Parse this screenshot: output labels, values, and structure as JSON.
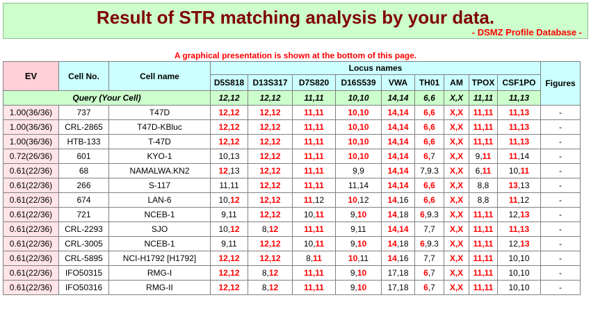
{
  "header": {
    "title": "Result of STR matching analysis by your data.",
    "subtitle": "- DSMZ Profile Database -"
  },
  "note": "A graphical presentation is shown at the bottom of this page.",
  "columns": {
    "ev": "EV",
    "cell_no": "Cell No.",
    "cell_name": "Cell name",
    "locus_names": "Locus names",
    "figures": "Figures",
    "loci": [
      "D5S818",
      "D13S317",
      "D7S820",
      "D16S539",
      "VWA",
      "TH01",
      "AM",
      "TPOX",
      "CSF1PO"
    ]
  },
  "query": {
    "label": "Query (Your Cell)",
    "values": [
      "12,12",
      "12,12",
      "11,11",
      "10,10",
      "14,14",
      "6,6",
      "X,X",
      "11,11",
      "11,13"
    ]
  },
  "rows": [
    {
      "ev": "1.00(36/36)",
      "cell_no": "737",
      "cell_name": "T47D",
      "figures": "-",
      "values": [
        [
          [
            "12,12",
            1
          ]
        ],
        [
          [
            "12,12",
            1
          ]
        ],
        [
          [
            "11,11",
            1
          ]
        ],
        [
          [
            "10,10",
            1
          ]
        ],
        [
          [
            "14,14",
            1
          ]
        ],
        [
          [
            "6,6",
            1
          ]
        ],
        [
          [
            "X,X",
            1
          ]
        ],
        [
          [
            "11,11",
            1
          ]
        ],
        [
          [
            "11,13",
            1
          ]
        ]
      ]
    },
    {
      "ev": "1.00(36/36)",
      "cell_no": "CRL-2865",
      "cell_name": "T47D-KBluc",
      "figures": "-",
      "values": [
        [
          [
            "12,12",
            1
          ]
        ],
        [
          [
            "12,12",
            1
          ]
        ],
        [
          [
            "11,11",
            1
          ]
        ],
        [
          [
            "10,10",
            1
          ]
        ],
        [
          [
            "14,14",
            1
          ]
        ],
        [
          [
            "6,6",
            1
          ]
        ],
        [
          [
            "X,X",
            1
          ]
        ],
        [
          [
            "11,11",
            1
          ]
        ],
        [
          [
            "11,13",
            1
          ]
        ]
      ]
    },
    {
      "ev": "1.00(36/36)",
      "cell_no": "HTB-133",
      "cell_name": "T-47D",
      "figures": "-",
      "values": [
        [
          [
            "12,12",
            1
          ]
        ],
        [
          [
            "12,12",
            1
          ]
        ],
        [
          [
            "11,11",
            1
          ]
        ],
        [
          [
            "10,10",
            1
          ]
        ],
        [
          [
            "14,14",
            1
          ]
        ],
        [
          [
            "6,6",
            1
          ]
        ],
        [
          [
            "X,X",
            1
          ]
        ],
        [
          [
            "11,11",
            1
          ]
        ],
        [
          [
            "11,13",
            1
          ]
        ]
      ]
    },
    {
      "ev": "0.72(26/36)",
      "cell_no": "601",
      "cell_name": "KYO-1",
      "figures": "-",
      "values": [
        [
          [
            "10,13",
            0
          ]
        ],
        [
          [
            "12,12",
            1
          ]
        ],
        [
          [
            "11,11",
            1
          ]
        ],
        [
          [
            "10,10",
            1
          ]
        ],
        [
          [
            "14,14",
            1
          ]
        ],
        [
          [
            "6,",
            1
          ],
          [
            "7",
            0
          ]
        ],
        [
          [
            "X,X",
            1
          ]
        ],
        [
          [
            "9,",
            0
          ],
          [
            "11",
            1
          ]
        ],
        [
          [
            "11",
            1
          ],
          [
            ",14",
            0
          ]
        ]
      ]
    },
    {
      "ev": "0.61(22/36)",
      "cell_no": "68",
      "cell_name": "NAMALWA.KN2",
      "figures": "-",
      "values": [
        [
          [
            "12",
            1
          ],
          [
            ",13",
            0
          ]
        ],
        [
          [
            "12,12",
            1
          ]
        ],
        [
          [
            "11,11",
            1
          ]
        ],
        [
          [
            "9,9",
            0
          ]
        ],
        [
          [
            "14,14",
            1
          ]
        ],
        [
          [
            "7,9.3",
            0
          ]
        ],
        [
          [
            "X,X",
            1
          ]
        ],
        [
          [
            "6,",
            0
          ],
          [
            "11",
            1
          ]
        ],
        [
          [
            "10,",
            0
          ],
          [
            "11",
            1
          ]
        ]
      ]
    },
    {
      "ev": "0.61(22/36)",
      "cell_no": "266",
      "cell_name": "S-117",
      "figures": "-",
      "values": [
        [
          [
            "11,11",
            0
          ]
        ],
        [
          [
            "12,12",
            1
          ]
        ],
        [
          [
            "11,11",
            1
          ]
        ],
        [
          [
            "11,14",
            0
          ]
        ],
        [
          [
            "14,14",
            1
          ]
        ],
        [
          [
            "6,6",
            1
          ]
        ],
        [
          [
            "X,X",
            1
          ]
        ],
        [
          [
            "8,8",
            0
          ]
        ],
        [
          [
            "13",
            1
          ],
          [
            ",13",
            0
          ]
        ]
      ]
    },
    {
      "ev": "0.61(22/36)",
      "cell_no": "674",
      "cell_name": "LAN-6",
      "figures": "-",
      "values": [
        [
          [
            "10,",
            0
          ],
          [
            "12",
            1
          ]
        ],
        [
          [
            "12,12",
            1
          ]
        ],
        [
          [
            "11",
            1
          ],
          [
            ",12",
            0
          ]
        ],
        [
          [
            "10",
            1
          ],
          [
            ",12",
            0
          ]
        ],
        [
          [
            "14",
            1
          ],
          [
            ",16",
            0
          ]
        ],
        [
          [
            "6,6",
            1
          ]
        ],
        [
          [
            "X,X",
            1
          ]
        ],
        [
          [
            "8,8",
            0
          ]
        ],
        [
          [
            "11",
            1
          ],
          [
            ",12",
            0
          ]
        ]
      ]
    },
    {
      "ev": "0.61(22/36)",
      "cell_no": "721",
      "cell_name": "NCEB-1",
      "figures": "-",
      "values": [
        [
          [
            "9,11",
            0
          ]
        ],
        [
          [
            "12,12",
            1
          ]
        ],
        [
          [
            "10,",
            0
          ],
          [
            "11",
            1
          ]
        ],
        [
          [
            "9,",
            0
          ],
          [
            "10",
            1
          ]
        ],
        [
          [
            "14",
            1
          ],
          [
            ",18",
            0
          ]
        ],
        [
          [
            "6",
            1
          ],
          [
            ",9.3",
            0
          ]
        ],
        [
          [
            "X,X",
            1
          ]
        ],
        [
          [
            "11,11",
            1
          ]
        ],
        [
          [
            "12,",
            0
          ],
          [
            "13",
            1
          ]
        ]
      ]
    },
    {
      "ev": "0.61(22/36)",
      "cell_no": "CRL-2293",
      "cell_name": "SJO",
      "figures": "-",
      "values": [
        [
          [
            "10,",
            0
          ],
          [
            "12",
            1
          ]
        ],
        [
          [
            "8,",
            0
          ],
          [
            "12",
            1
          ]
        ],
        [
          [
            "11,11",
            1
          ]
        ],
        [
          [
            "9,11",
            0
          ]
        ],
        [
          [
            "14,14",
            1
          ]
        ],
        [
          [
            "7,7",
            0
          ]
        ],
        [
          [
            "X,X",
            1
          ]
        ],
        [
          [
            "11,11",
            1
          ]
        ],
        [
          [
            "11,13",
            1
          ]
        ]
      ]
    },
    {
      "ev": "0.61(22/36)",
      "cell_no": "CRL-3005",
      "cell_name": "NCEB-1",
      "figures": "-",
      "values": [
        [
          [
            "9,11",
            0
          ]
        ],
        [
          [
            "12,12",
            1
          ]
        ],
        [
          [
            "10,",
            0
          ],
          [
            "11",
            1
          ]
        ],
        [
          [
            "9,",
            0
          ],
          [
            "10",
            1
          ]
        ],
        [
          [
            "14",
            1
          ],
          [
            ",18",
            0
          ]
        ],
        [
          [
            "6",
            1
          ],
          [
            ",9.3",
            0
          ]
        ],
        [
          [
            "X,X",
            1
          ]
        ],
        [
          [
            "11,11",
            1
          ]
        ],
        [
          [
            "12,",
            0
          ],
          [
            "13",
            1
          ]
        ]
      ]
    },
    {
      "ev": "0.61(22/36)",
      "cell_no": "CRL-5895",
      "cell_name": "NCI-H1792 [H1792]",
      "figures": "-",
      "values": [
        [
          [
            "12,12",
            1
          ]
        ],
        [
          [
            "12,12",
            1
          ]
        ],
        [
          [
            "8,",
            0
          ],
          [
            "11",
            1
          ]
        ],
        [
          [
            "10",
            1
          ],
          [
            ",11",
            0
          ]
        ],
        [
          [
            "14",
            1
          ],
          [
            ",16",
            0
          ]
        ],
        [
          [
            "7,7",
            0
          ]
        ],
        [
          [
            "X,X",
            1
          ]
        ],
        [
          [
            "11,11",
            1
          ]
        ],
        [
          [
            "10,10",
            0
          ]
        ]
      ]
    },
    {
      "ev": "0.61(22/36)",
      "cell_no": "IFO50315",
      "cell_name": "RMG-I",
      "figures": "-",
      "values": [
        [
          [
            "12,12",
            1
          ]
        ],
        [
          [
            "8,",
            0
          ],
          [
            "12",
            1
          ]
        ],
        [
          [
            "11,11",
            1
          ]
        ],
        [
          [
            "9,",
            0
          ],
          [
            "10",
            1
          ]
        ],
        [
          [
            "17,18",
            0
          ]
        ],
        [
          [
            "6",
            1
          ],
          [
            ",7",
            0
          ]
        ],
        [
          [
            "X,X",
            1
          ]
        ],
        [
          [
            "11,11",
            1
          ]
        ],
        [
          [
            "10,10",
            0
          ]
        ]
      ]
    },
    {
      "ev": "0.61(22/36)",
      "cell_no": "IFO50316",
      "cell_name": "RMG-II",
      "figures": "-",
      "values": [
        [
          [
            "12,12",
            1
          ]
        ],
        [
          [
            "8,",
            0
          ],
          [
            "12",
            1
          ]
        ],
        [
          [
            "11,11",
            1
          ]
        ],
        [
          [
            "9,",
            0
          ],
          [
            "10",
            1
          ]
        ],
        [
          [
            "17,18",
            0
          ]
        ],
        [
          [
            "6",
            1
          ],
          [
            ",7",
            0
          ]
        ],
        [
          [
            "X,X",
            1
          ]
        ],
        [
          [
            "11,11",
            1
          ]
        ],
        [
          [
            "10,10",
            0
          ]
        ]
      ]
    }
  ]
}
